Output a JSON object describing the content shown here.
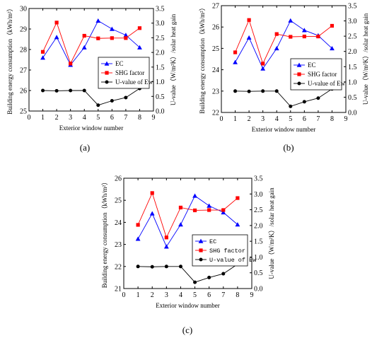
{
  "chart_data": [
    {
      "type": "line",
      "panel_label": "(a)",
      "xlabel": "Exterior window number",
      "ylabel_left": "Building energy consumption（kWh/m²）",
      "ylabel_right": "U-value（W/m²K）/solar heat gain",
      "xlim": [
        0,
        9
      ],
      "xticks": [
        "0",
        "1",
        "2",
        "3",
        "4",
        "5",
        "6",
        "7",
        "8",
        "9"
      ],
      "ylim_left": [
        25,
        30
      ],
      "yticks_left": [
        "25",
        "26",
        "27",
        "28",
        "29",
        "30"
      ],
      "ylim_right": [
        0,
        3.5
      ],
      "yticks_right": [
        "0.0",
        "0.5",
        "1.0",
        "1.5",
        "2.0",
        "2.5",
        "3.0",
        "3.5"
      ],
      "legend_position": "lower-right",
      "x": [
        1,
        2,
        3,
        4,
        5,
        6,
        7,
        8
      ],
      "series": [
        {
          "name": "EC",
          "axis": "left",
          "color": "#0000ff",
          "marker": "triangle",
          "values": [
            27.6,
            28.6,
            27.25,
            28.1,
            29.4,
            29.0,
            28.7,
            28.1
          ]
        },
        {
          "name": "SHG factor",
          "axis": "right",
          "color": "#ff0000",
          "marker": "square",
          "values": [
            2.02,
            3.02,
            1.62,
            2.57,
            2.48,
            2.49,
            2.49,
            2.83
          ]
        },
        {
          "name": "U-value of Ew",
          "axis": "right",
          "color": "#000000",
          "marker": "circle",
          "values": [
            0.7,
            0.69,
            0.7,
            0.7,
            0.2,
            0.35,
            0.46,
            0.77
          ]
        }
      ]
    },
    {
      "type": "line",
      "panel_label": "(b)",
      "xlabel": "Exterior window number",
      "ylabel_left": "Building energy consumption（kWh/m²）",
      "ylabel_right": "U-value（W/m²K）/solar heat gain",
      "xlim": [
        0,
        9
      ],
      "xticks": [
        "0",
        "1",
        "2",
        "3",
        "4",
        "5",
        "6",
        "7",
        "8",
        "9"
      ],
      "ylim_left": [
        22,
        27
      ],
      "yticks_left": [
        "22",
        "23",
        "24",
        "25",
        "26",
        "27"
      ],
      "ylim_right": [
        0,
        3.5
      ],
      "yticks_right": [
        "0.0",
        "0.5",
        "1.0",
        "1.5",
        "2.0",
        "2.5",
        "3.0",
        "3.5"
      ],
      "legend_position": "lower-right",
      "x": [
        1,
        2,
        3,
        4,
        5,
        6,
        7,
        8
      ],
      "series": [
        {
          "name": "EC",
          "axis": "left",
          "color": "#0000ff",
          "marker": "triangle",
          "values": [
            24.35,
            25.5,
            24.05,
            25.0,
            26.3,
            25.85,
            25.6,
            25.0
          ]
        },
        {
          "name": "SHG factor",
          "axis": "right",
          "color": "#ff0000",
          "marker": "square",
          "values": [
            1.97,
            3.03,
            1.6,
            2.57,
            2.48,
            2.49,
            2.49,
            2.84
          ]
        },
        {
          "name": "U-value of Ew",
          "axis": "right",
          "color": "#000000",
          "marker": "circle",
          "values": [
            0.7,
            0.69,
            0.7,
            0.7,
            0.2,
            0.35,
            0.47,
            0.77
          ]
        }
      ]
    },
    {
      "type": "line",
      "panel_label": "(c)",
      "xlabel": "Exterior window number",
      "ylabel_left": "Building energy consumption（kWh/m²）",
      "ylabel_right": "U-value（W/m²K）/solar heat gain",
      "xlim": [
        0,
        9
      ],
      "xticks": [
        "0",
        "1",
        "2",
        "3",
        "4",
        "5",
        "6",
        "7",
        "8",
        "9"
      ],
      "ylim_left": [
        21,
        26
      ],
      "yticks_left": [
        "21",
        "22",
        "23",
        "24",
        "25",
        "26"
      ],
      "ylim_right": [
        0,
        3.5
      ],
      "yticks_right": [
        "0.0",
        "0.5",
        "1.0",
        "1.5",
        "2.0",
        "2.5",
        "3.0",
        "3.5"
      ],
      "legend_position": "lower-right",
      "x": [
        1,
        2,
        3,
        4,
        5,
        6,
        7,
        8
      ],
      "series": [
        {
          "name": "EC",
          "axis": "left",
          "color": "#0000ff",
          "marker": "triangle",
          "values": [
            23.25,
            24.4,
            22.9,
            23.9,
            25.2,
            24.75,
            24.45,
            23.9
          ]
        },
        {
          "name": "SHG factor",
          "axis": "right",
          "color": "#ff0000",
          "marker": "square",
          "values": [
            2.02,
            3.03,
            1.62,
            2.57,
            2.48,
            2.49,
            2.49,
            2.87
          ]
        },
        {
          "name": "U-value of Ew",
          "axis": "right",
          "color": "#000000",
          "marker": "circle",
          "values": [
            0.7,
            0.69,
            0.7,
            0.7,
            0.2,
            0.35,
            0.47,
            0.77
          ]
        }
      ]
    }
  ]
}
